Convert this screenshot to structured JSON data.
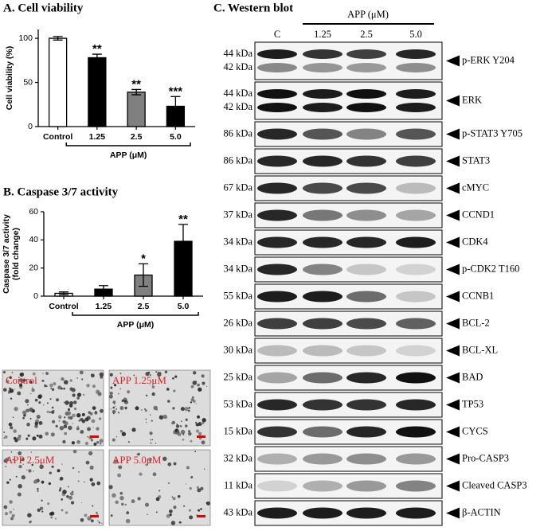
{
  "chart_data": [
    {
      "type": "bar",
      "title": "A. Cell viability",
      "y_label": [
        "Cell viability (%)"
      ],
      "categories": [
        "Control",
        "1.25",
        "2.5",
        "5.0"
      ],
      "values": [
        100,
        78,
        39,
        23
      ],
      "errors": [
        2,
        4,
        3,
        11
      ],
      "annotations": [
        null,
        "**",
        "**",
        "***"
      ],
      "colors": [
        "#ffffff",
        "#000000",
        "#808080",
        "#000000"
      ],
      "ylim": [
        0,
        110
      ],
      "yticks": [
        0,
        50,
        100
      ],
      "group_label": "APP (μM)"
    },
    {
      "type": "bar",
      "title": "B. Caspase 3/7 activity",
      "y_label": [
        "Caspase 3/7 activity",
        "(fold change)"
      ],
      "categories": [
        "Control",
        "1.25",
        "2.5",
        "5.0"
      ],
      "values": [
        2,
        5,
        15,
        39
      ],
      "errors": [
        1,
        2.5,
        8,
        12
      ],
      "annotations": [
        null,
        null,
        "*",
        "**"
      ],
      "colors": [
        "#ffffff",
        "#000000",
        "#808080",
        "#000000"
      ],
      "ylim": [
        0,
        60
      ],
      "yticks": [
        0,
        20,
        40,
        60
      ],
      "group_label": "APP (μM)"
    }
  ],
  "micrographs": {
    "labels": [
      "Control",
      "APP 1.25μM",
      "APP 2.5μM",
      "APP 5.0μM"
    ]
  },
  "western_blot": {
    "title": "C. Western blot",
    "group_label": "APP (μM)",
    "lanes": [
      "C",
      "1.25",
      "2.5",
      "5.0"
    ],
    "rows": [
      {
        "sizes": [
          "44 kDa",
          "42 kDa"
        ],
        "protein": "p-ERK Y204"
      },
      {
        "sizes": [
          "44 kDa",
          "42 kDa"
        ],
        "protein": "ERK"
      },
      {
        "sizes": [
          "86 kDa"
        ],
        "protein": "p-STAT3 Y705"
      },
      {
        "sizes": [
          "86 kDa"
        ],
        "protein": "STAT3"
      },
      {
        "sizes": [
          "67 kDa"
        ],
        "protein": "cMYC"
      },
      {
        "sizes": [
          "37 kDa"
        ],
        "protein": "CCND1"
      },
      {
        "sizes": [
          "34 kDa"
        ],
        "protein": "CDK4"
      },
      {
        "sizes": [
          "34 kDa"
        ],
        "protein": "p-CDK2 T160"
      },
      {
        "sizes": [
          "55 kDa"
        ],
        "protein": "CCNB1"
      },
      {
        "sizes": [
          "26 kDa"
        ],
        "protein": "BCL-2"
      },
      {
        "sizes": [
          "30 kDa"
        ],
        "protein": "BCL-XL"
      },
      {
        "sizes": [
          "25 kDa"
        ],
        "protein": "BAD"
      },
      {
        "sizes": [
          "53 kDa"
        ],
        "protein": "TP53"
      },
      {
        "sizes": [
          "15 kDa"
        ],
        "protein": "CYCS"
      },
      {
        "sizes": [
          "32 kDa"
        ],
        "protein": "Pro-CASP3"
      },
      {
        "sizes": [
          "11 kDa"
        ],
        "protein": "Cleaved CASP3"
      },
      {
        "sizes": [
          "43 kDa"
        ],
        "protein": "β-ACTIN"
      }
    ]
  }
}
